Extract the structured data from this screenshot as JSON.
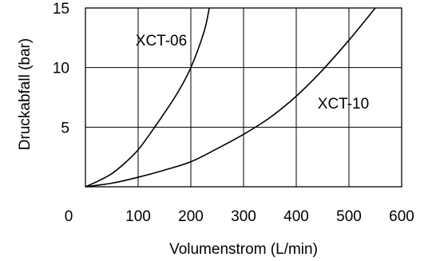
{
  "chart_data": {
    "type": "line",
    "title": "",
    "xlabel": "Volumenstrom (L/min)",
    "ylabel": "Druckabfall (bar)",
    "xlim": [
      0,
      600
    ],
    "ylim": [
      0,
      15
    ],
    "x_ticks": [
      0,
      100,
      200,
      300,
      400,
      500,
      600
    ],
    "x_tick_labels": [
      "0",
      "100",
      "200",
      "300",
      "400",
      "500",
      "600"
    ],
    "y_ticks": [
      5,
      10,
      15
    ],
    "y_tick_labels": [
      "5",
      "10",
      "15"
    ],
    "grid": true,
    "legend": "none",
    "series": [
      {
        "name": "XCT-06",
        "label": "XCT-06",
        "x": [
          0,
          25,
          50,
          75,
          100,
          125,
          150,
          175,
          200,
          225,
          235
        ],
        "y": [
          0,
          0.5,
          1.1,
          2.0,
          3.1,
          4.6,
          6.2,
          7.9,
          10.0,
          13.0,
          15.0
        ]
      },
      {
        "name": "XCT-10",
        "label": "XCT-10",
        "x": [
          0,
          50,
          100,
          150,
          200,
          250,
          300,
          350,
          400,
          450,
          500,
          550
        ],
        "y": [
          0,
          0.3,
          0.8,
          1.4,
          2.1,
          3.2,
          4.4,
          5.8,
          7.6,
          9.8,
          12.3,
          15.0
        ]
      }
    ]
  }
}
